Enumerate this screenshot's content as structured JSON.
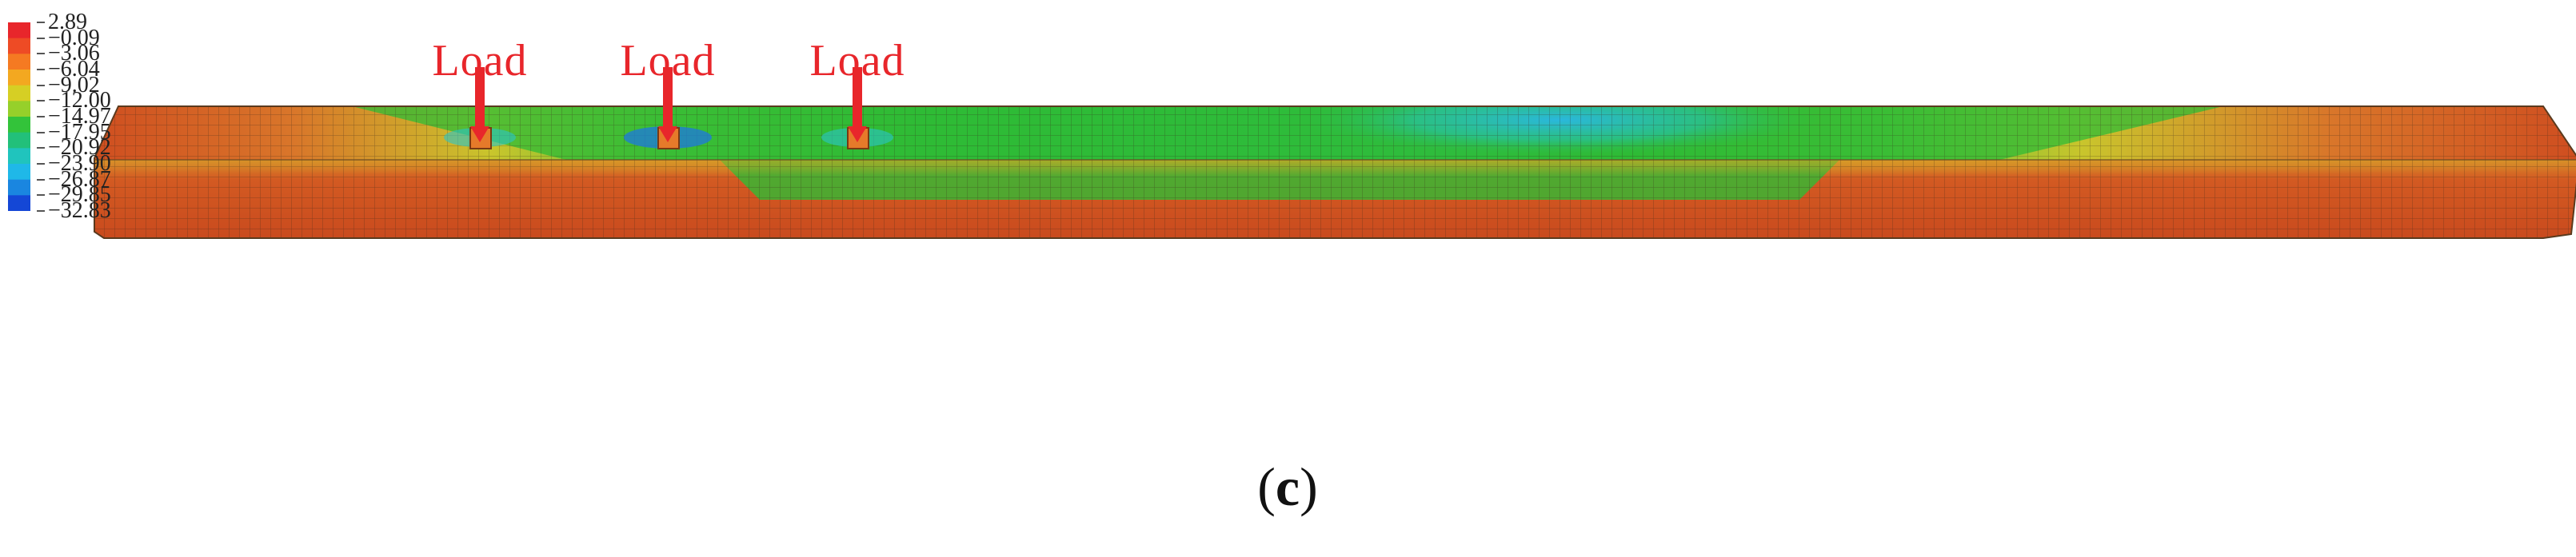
{
  "legend": {
    "values": [
      "2.89",
      "−0.09",
      "−3.06",
      "−6.04",
      "−9.02",
      "−12.00",
      "−14.97",
      "−17.95",
      "−20.92",
      "−23.90",
      "−26.87",
      "−29.85",
      "−32.83"
    ],
    "colors": [
      "#e8262b",
      "#ee4b25",
      "#f57a22",
      "#f3a820",
      "#d6cf24",
      "#96d02a",
      "#33c33a",
      "#22c07a",
      "#20c4bd",
      "#1fb8e8",
      "#1a86e0",
      "#1447d6",
      "#1212c9"
    ]
  },
  "loads": [
    {
      "label": "Load"
    },
    {
      "label": "Load"
    },
    {
      "label": "Load"
    }
  ],
  "caption": {
    "open": "(",
    "letter": "c",
    "close": ")"
  },
  "colors": {
    "load_arrow": "#e8262b",
    "mesh_line": "#3a2a1a"
  }
}
